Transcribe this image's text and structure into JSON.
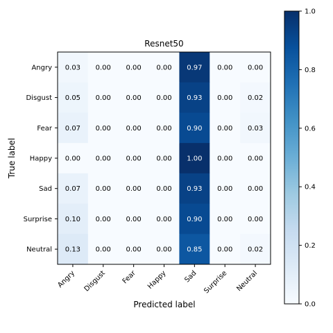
{
  "chart_data": {
    "type": "heatmap",
    "title": "Resnet50",
    "xlabel": "Predicted label",
    "ylabel": "True label",
    "x_categories": [
      "Angry",
      "Disgust",
      "Fear",
      "Happy",
      "Sad",
      "Surprise",
      "Neutral"
    ],
    "y_categories": [
      "Angry",
      "Disgust",
      "Fear",
      "Happy",
      "Sad",
      "Surprise",
      "Neutral"
    ],
    "values": [
      [
        0.03,
        0.0,
        0.0,
        0.0,
        0.97,
        0.0,
        0.0
      ],
      [
        0.05,
        0.0,
        0.0,
        0.0,
        0.93,
        0.0,
        0.02
      ],
      [
        0.07,
        0.0,
        0.0,
        0.0,
        0.9,
        0.0,
        0.03
      ],
      [
        0.0,
        0.0,
        0.0,
        0.0,
        1.0,
        0.0,
        0.0
      ],
      [
        0.07,
        0.0,
        0.0,
        0.0,
        0.93,
        0.0,
        0.0
      ],
      [
        0.1,
        0.0,
        0.0,
        0.0,
        0.9,
        0.0,
        0.0
      ],
      [
        0.13,
        0.0,
        0.0,
        0.0,
        0.85,
        0.0,
        0.02
      ]
    ],
    "value_format": "0.00",
    "colormap": "Blues",
    "colorbar": {
      "range": [
        0.0,
        1.0
      ],
      "ticks": [
        "0.0",
        "0.2",
        "0.4",
        "0.6",
        "0.8",
        "1.0"
      ]
    },
    "grid": false,
    "x_tick_rotation": "45 degrees"
  }
}
